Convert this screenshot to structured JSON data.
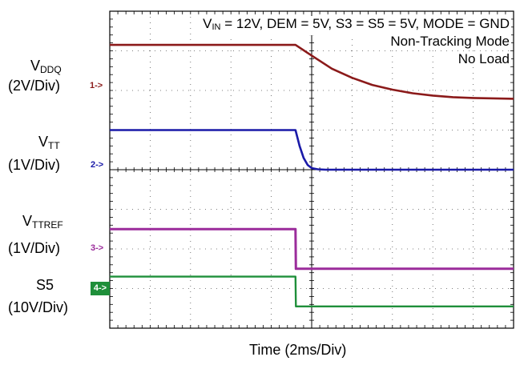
{
  "annotation": {
    "line1": "V",
    "line1_sub": "IN",
    "line1_rest": " = 12V, DEM = 5V, S3 = S5 = 5V, MODE = GND",
    "line2": "Non-Tracking Mode",
    "line3": "No Load"
  },
  "channels": [
    {
      "name_main": "V",
      "name_sub": "DDQ",
      "scale": "(2V/Div)",
      "marker": "1->",
      "color": "#8b1a1a"
    },
    {
      "name_main": "V",
      "name_sub": "TT",
      "scale": "(1V/Div)",
      "marker": "2->",
      "color": "#1a1aa8"
    },
    {
      "name_main": "V",
      "name_sub": "TTREF",
      "scale": "(1V/Div)",
      "marker": "3->",
      "color": "#9b2c9b"
    },
    {
      "name_main": "S5",
      "name_sub": "",
      "scale": "(10V/Div)",
      "marker": "4->",
      "color": "#1f8f3a"
    }
  ],
  "xlabel": "Time (2ms/Div)",
  "chart_data": {
    "type": "line",
    "title": "",
    "xlabel": "Time (2ms/Div)",
    "ylabel": "",
    "x_unit": "div",
    "xlim": [
      0,
      10
    ],
    "ylim_div": [
      0,
      8
    ],
    "grid": true,
    "series": [
      {
        "name": "VDDQ",
        "color": "#8b1a1a",
        "x": [
          0,
          4.6,
          5.0,
          5.5,
          6.0,
          6.5,
          7.0,
          7.5,
          8.0,
          8.5,
          9.0,
          10.0
        ],
        "y_div": [
          7.15,
          7.15,
          6.88,
          6.55,
          6.32,
          6.14,
          6.02,
          5.93,
          5.87,
          5.83,
          5.81,
          5.79
        ]
      },
      {
        "name": "VTT",
        "color": "#1a1aa8",
        "x": [
          0,
          4.6,
          4.7,
          4.8,
          4.9,
          5.0,
          5.15,
          5.35,
          5.6,
          10.0
        ],
        "y_div": [
          5.0,
          5.0,
          4.6,
          4.3,
          4.12,
          4.04,
          4.01,
          4.0,
          4.0,
          4.0
        ]
      },
      {
        "name": "VTTREF",
        "color": "#9b2c9b",
        "x": [
          0,
          4.6,
          4.61,
          10.0
        ],
        "y_div": [
          2.5,
          2.5,
          1.5,
          1.5
        ]
      },
      {
        "name": "S5",
        "color": "#1f8f3a",
        "x": [
          0,
          4.6,
          4.61,
          10.0
        ],
        "y_div": [
          1.3,
          1.3,
          0.55,
          0.55
        ]
      }
    ]
  }
}
